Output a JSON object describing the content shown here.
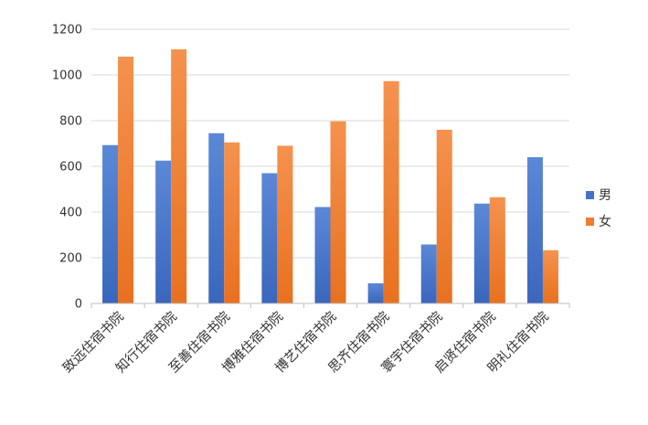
{
  "chart_data": {
    "type": "bar",
    "categories": [
      "致远住宿书院",
      "知行住宿书院",
      "至善住宿书院",
      "博雅住宿书院",
      "博艺住宿书院",
      "思齐住宿书院",
      "寰宇住宿书院",
      "启贤住宿书院",
      "明礼住宿书院"
    ],
    "series": [
      {
        "name": "男",
        "color": "#4472C4",
        "values": [
          693,
          625,
          745,
          570,
          422,
          88,
          258,
          437,
          640
        ]
      },
      {
        "name": "女",
        "color": "#ED7D31",
        "values": [
          1080,
          1112,
          705,
          690,
          797,
          973,
          760,
          465,
          233
        ]
      }
    ],
    "ylim": [
      0,
      1200
    ],
    "yticks": [
      "0",
      "200",
      "400",
      "600",
      "800",
      "1000",
      "1200"
    ],
    "grid": true,
    "legend_position": "right",
    "title": "",
    "xlabel": "",
    "ylabel": ""
  }
}
